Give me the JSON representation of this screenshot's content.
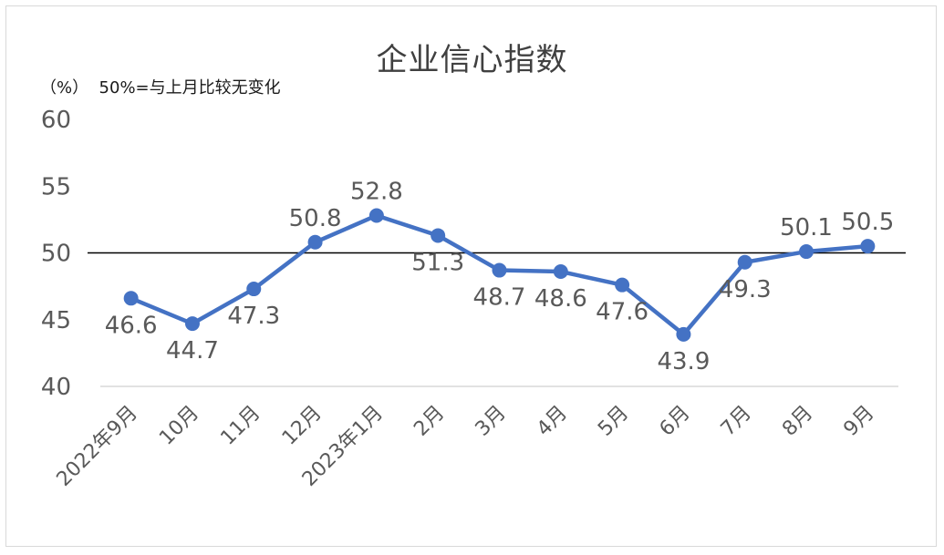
{
  "chart_data": {
    "type": "line",
    "title": "企业信心指数",
    "subtitle": "（%）  50%=与上月比较无变化",
    "categories": [
      "2022年9月",
      "10月",
      "11月",
      "12月",
      "2023年1月",
      "2月",
      "3月",
      "4月",
      "5月",
      "6月",
      "7月",
      "8月",
      "9月"
    ],
    "series": [
      {
        "values": [
          46.6,
          44.7,
          47.3,
          50.8,
          52.8,
          51.3,
          48.7,
          48.6,
          47.6,
          43.9,
          49.3,
          50.1,
          50.5
        ]
      }
    ],
    "data_labels": [
      "46.6",
      "44.7",
      "47.3",
      "50.8",
      "52.8",
      "51.3",
      "48.7",
      "48.6",
      "47.6",
      "43.9",
      "49.3",
      "50.1",
      "50.5"
    ],
    "ylim": [
      40,
      60
    ],
    "yticks": [
      "40",
      "45",
      "50",
      "55",
      "60"
    ],
    "reference_line": 50,
    "grid": false,
    "colors": {
      "line": "#4472C4",
      "reference": "#000000",
      "text": "#595959",
      "axis": "#d9d9d9"
    }
  }
}
